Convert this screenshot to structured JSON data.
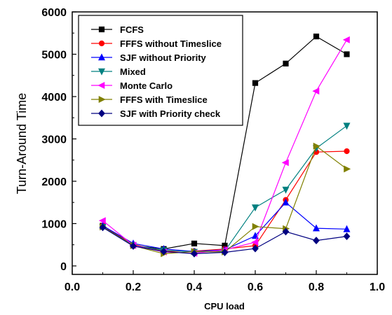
{
  "chart_data": {
    "type": "line",
    "xlabel": "CPU load",
    "ylabel": "Turn-Around Time",
    "xlim": [
      0.0,
      1.0
    ],
    "ylim": [
      -200,
      6000
    ],
    "x_ticks": [
      0.0,
      0.2,
      0.4,
      0.6,
      0.8,
      1.0
    ],
    "x_tick_labels": [
      "0.0",
      "0.2",
      "0.4",
      "0.6",
      "0.8",
      "1.0"
    ],
    "y_ticks": [
      0,
      1000,
      2000,
      3000,
      4000,
      5000,
      6000
    ],
    "y_tick_labels": [
      "0",
      "1000",
      "2000",
      "3000",
      "4000",
      "5000",
      "6000"
    ],
    "legend_position": "top-left",
    "grid": false,
    "x": [
      0.1,
      0.2,
      0.3,
      0.4,
      0.5,
      0.6,
      0.7,
      0.8,
      0.9
    ],
    "series": [
      {
        "name": "FCFS",
        "color": "#000000",
        "marker": "square",
        "values": [
          950,
          480,
          400,
          530,
          480,
          4320,
          4780,
          5420,
          5000
        ]
      },
      {
        "name": "FFFS without Timeslice",
        "color": "#ff0000",
        "marker": "circle",
        "values": [
          950,
          510,
          340,
          350,
          400,
          480,
          1560,
          2690,
          2710
        ]
      },
      {
        "name": "SJF without Priority",
        "color": "#0000ff",
        "marker": "triangle-up",
        "values": [
          950,
          530,
          400,
          340,
          380,
          710,
          1500,
          890,
          870
        ]
      },
      {
        "name": "Mixed",
        "color": "#008080",
        "marker": "triangle-down",
        "values": [
          920,
          490,
          370,
          330,
          350,
          1380,
          1800,
          2780,
          3310
        ]
      },
      {
        "name": "Monte Carlo",
        "color": "#ff00ff",
        "marker": "triangle-left",
        "values": [
          1070,
          490,
          330,
          300,
          380,
          560,
          2440,
          4130,
          5340
        ]
      },
      {
        "name": "FFFS with Timeslice",
        "color": "#808000",
        "marker": "triangle-right",
        "values": [
          920,
          480,
          290,
          340,
          330,
          930,
          880,
          2830,
          2290
        ]
      },
      {
        "name": "SJF with Priority check",
        "color": "#000080",
        "marker": "diamond",
        "values": [
          910,
          470,
          340,
          290,
          320,
          410,
          810,
          600,
          700
        ]
      }
    ]
  }
}
